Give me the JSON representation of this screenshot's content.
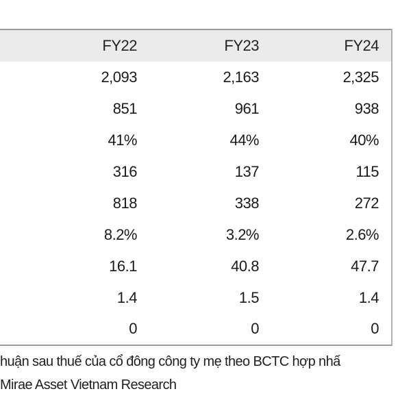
{
  "table": {
    "columns": [
      "FY22",
      "FY23",
      "FY24"
    ],
    "rows": [
      [
        "2,093",
        "2,163",
        "2,325"
      ],
      [
        "851",
        "961",
        "938"
      ],
      [
        "41%",
        "44%",
        "40%"
      ],
      [
        "316",
        "137",
        "115"
      ],
      [
        "818",
        "338",
        "272"
      ],
      [
        "8.2%",
        "3.2%",
        "2.6%"
      ],
      [
        "16.1",
        "40.8",
        "47.7"
      ],
      [
        "1.4",
        "1.5",
        "1.4"
      ],
      [
        "0",
        "0",
        "0"
      ]
    ]
  },
  "footnote": "huận sau thuế của cổ đông công ty mẹ theo BCTC hợp nhấ",
  "source": "Mirae Asset Vietnam Research"
}
